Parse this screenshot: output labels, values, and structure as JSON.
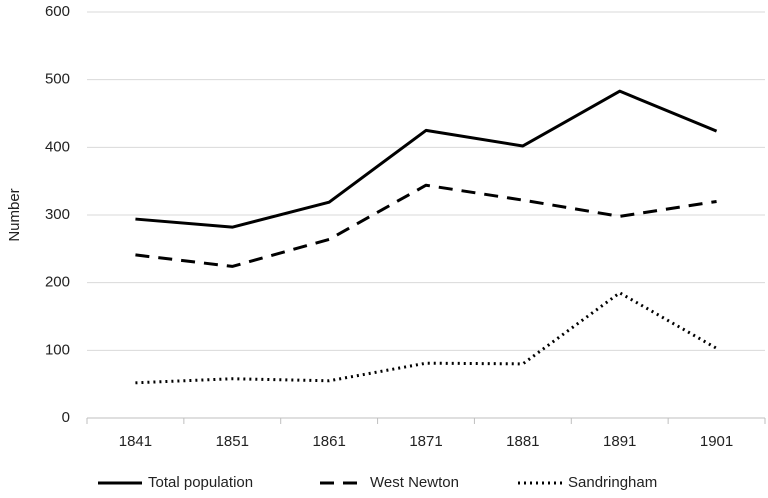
{
  "chart_data": {
    "type": "line",
    "y_label": "Number",
    "categories": [
      "1841",
      "1851",
      "1861",
      "1871",
      "1881",
      "1891",
      "1901"
    ],
    "series": [
      {
        "name": "Total population",
        "color": "#000000",
        "dash": "solid",
        "values": [
          294,
          282,
          319,
          425,
          402,
          483,
          424
        ]
      },
      {
        "name": "West Newton",
        "color": "#000000",
        "dash": "dashed",
        "values": [
          241,
          224,
          264,
          344,
          322,
          298,
          320
        ]
      },
      {
        "name": "Sandringham",
        "color": "#000000",
        "dash": "dotted",
        "values": [
          52,
          58,
          55,
          81,
          80,
          185,
          103
        ]
      }
    ],
    "ylim": [
      0,
      600
    ],
    "yticks": [
      0,
      100,
      200,
      300,
      400,
      500,
      600
    ],
    "grid": true,
    "legend": "bottom"
  }
}
